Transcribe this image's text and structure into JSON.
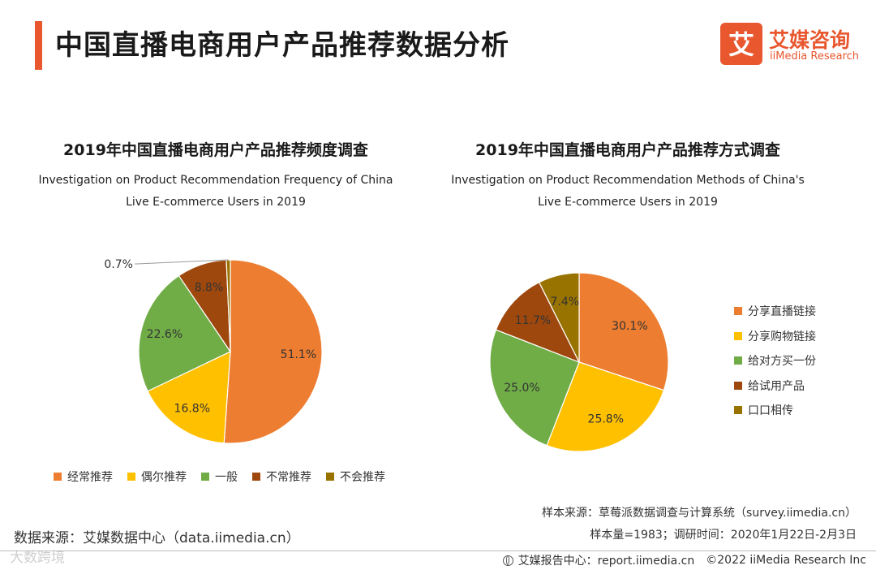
{
  "header": {
    "title": "中国直播电商用户产品推荐数据分析",
    "logo_cn": "艾媒咨询",
    "logo_en": "iiMedia Research",
    "logo_mark": "艾"
  },
  "colors": {
    "accent": "#e8572e",
    "series": [
      "#ed7d31",
      "#ffc000",
      "#70ad47",
      "#9e480e",
      "#997300"
    ]
  },
  "chart_data": [
    {
      "type": "pie",
      "title": "2019年中国直播电商用户产品推荐频度调查",
      "subtitle_line1": "Investigation on Product Recommendation Frequency of China",
      "subtitle_line2": "Live E-commerce Users in 2019",
      "categories": [
        "经常推荐",
        "偶尔推荐",
        "一般",
        "不常推荐",
        "不会推荐"
      ],
      "values": [
        51.1,
        16.8,
        22.6,
        8.8,
        0.7
      ],
      "labels": [
        "51.1%",
        "16.8%",
        "22.6%",
        "8.8%",
        "0.7%"
      ],
      "legend": "bottom"
    },
    {
      "type": "pie",
      "title": "2019年中国直播电商用户产品推荐方式调查",
      "subtitle_line1": "Investigation on Product Recommendation Methods of China's",
      "subtitle_line2": "Live E-commerce Users in 2019",
      "categories": [
        "分享直播链接",
        "分享购物链接",
        "给对方买一份",
        "给试用产品",
        "口口相传"
      ],
      "values": [
        30.1,
        25.8,
        25.0,
        11.7,
        7.4
      ],
      "labels": [
        "30.1%",
        "25.8%",
        "25.0%",
        "11.7%",
        "7.4%"
      ],
      "legend": "right"
    }
  ],
  "notes": {
    "sample_source": "样本来源：草莓派数据调查与计算系统（survey.iimedia.cn）",
    "sample_size": "样本量=1983；调研时间：2020年1月22日-2月3日"
  },
  "footer": {
    "data_source": "数据来源：艾媒数据中心（data.iimedia.cn）",
    "report_center": "艾媒报告中心：report.iimedia.cn",
    "copyright": "©2022  iiMedia Research  Inc",
    "watermark": "大数跨境"
  }
}
